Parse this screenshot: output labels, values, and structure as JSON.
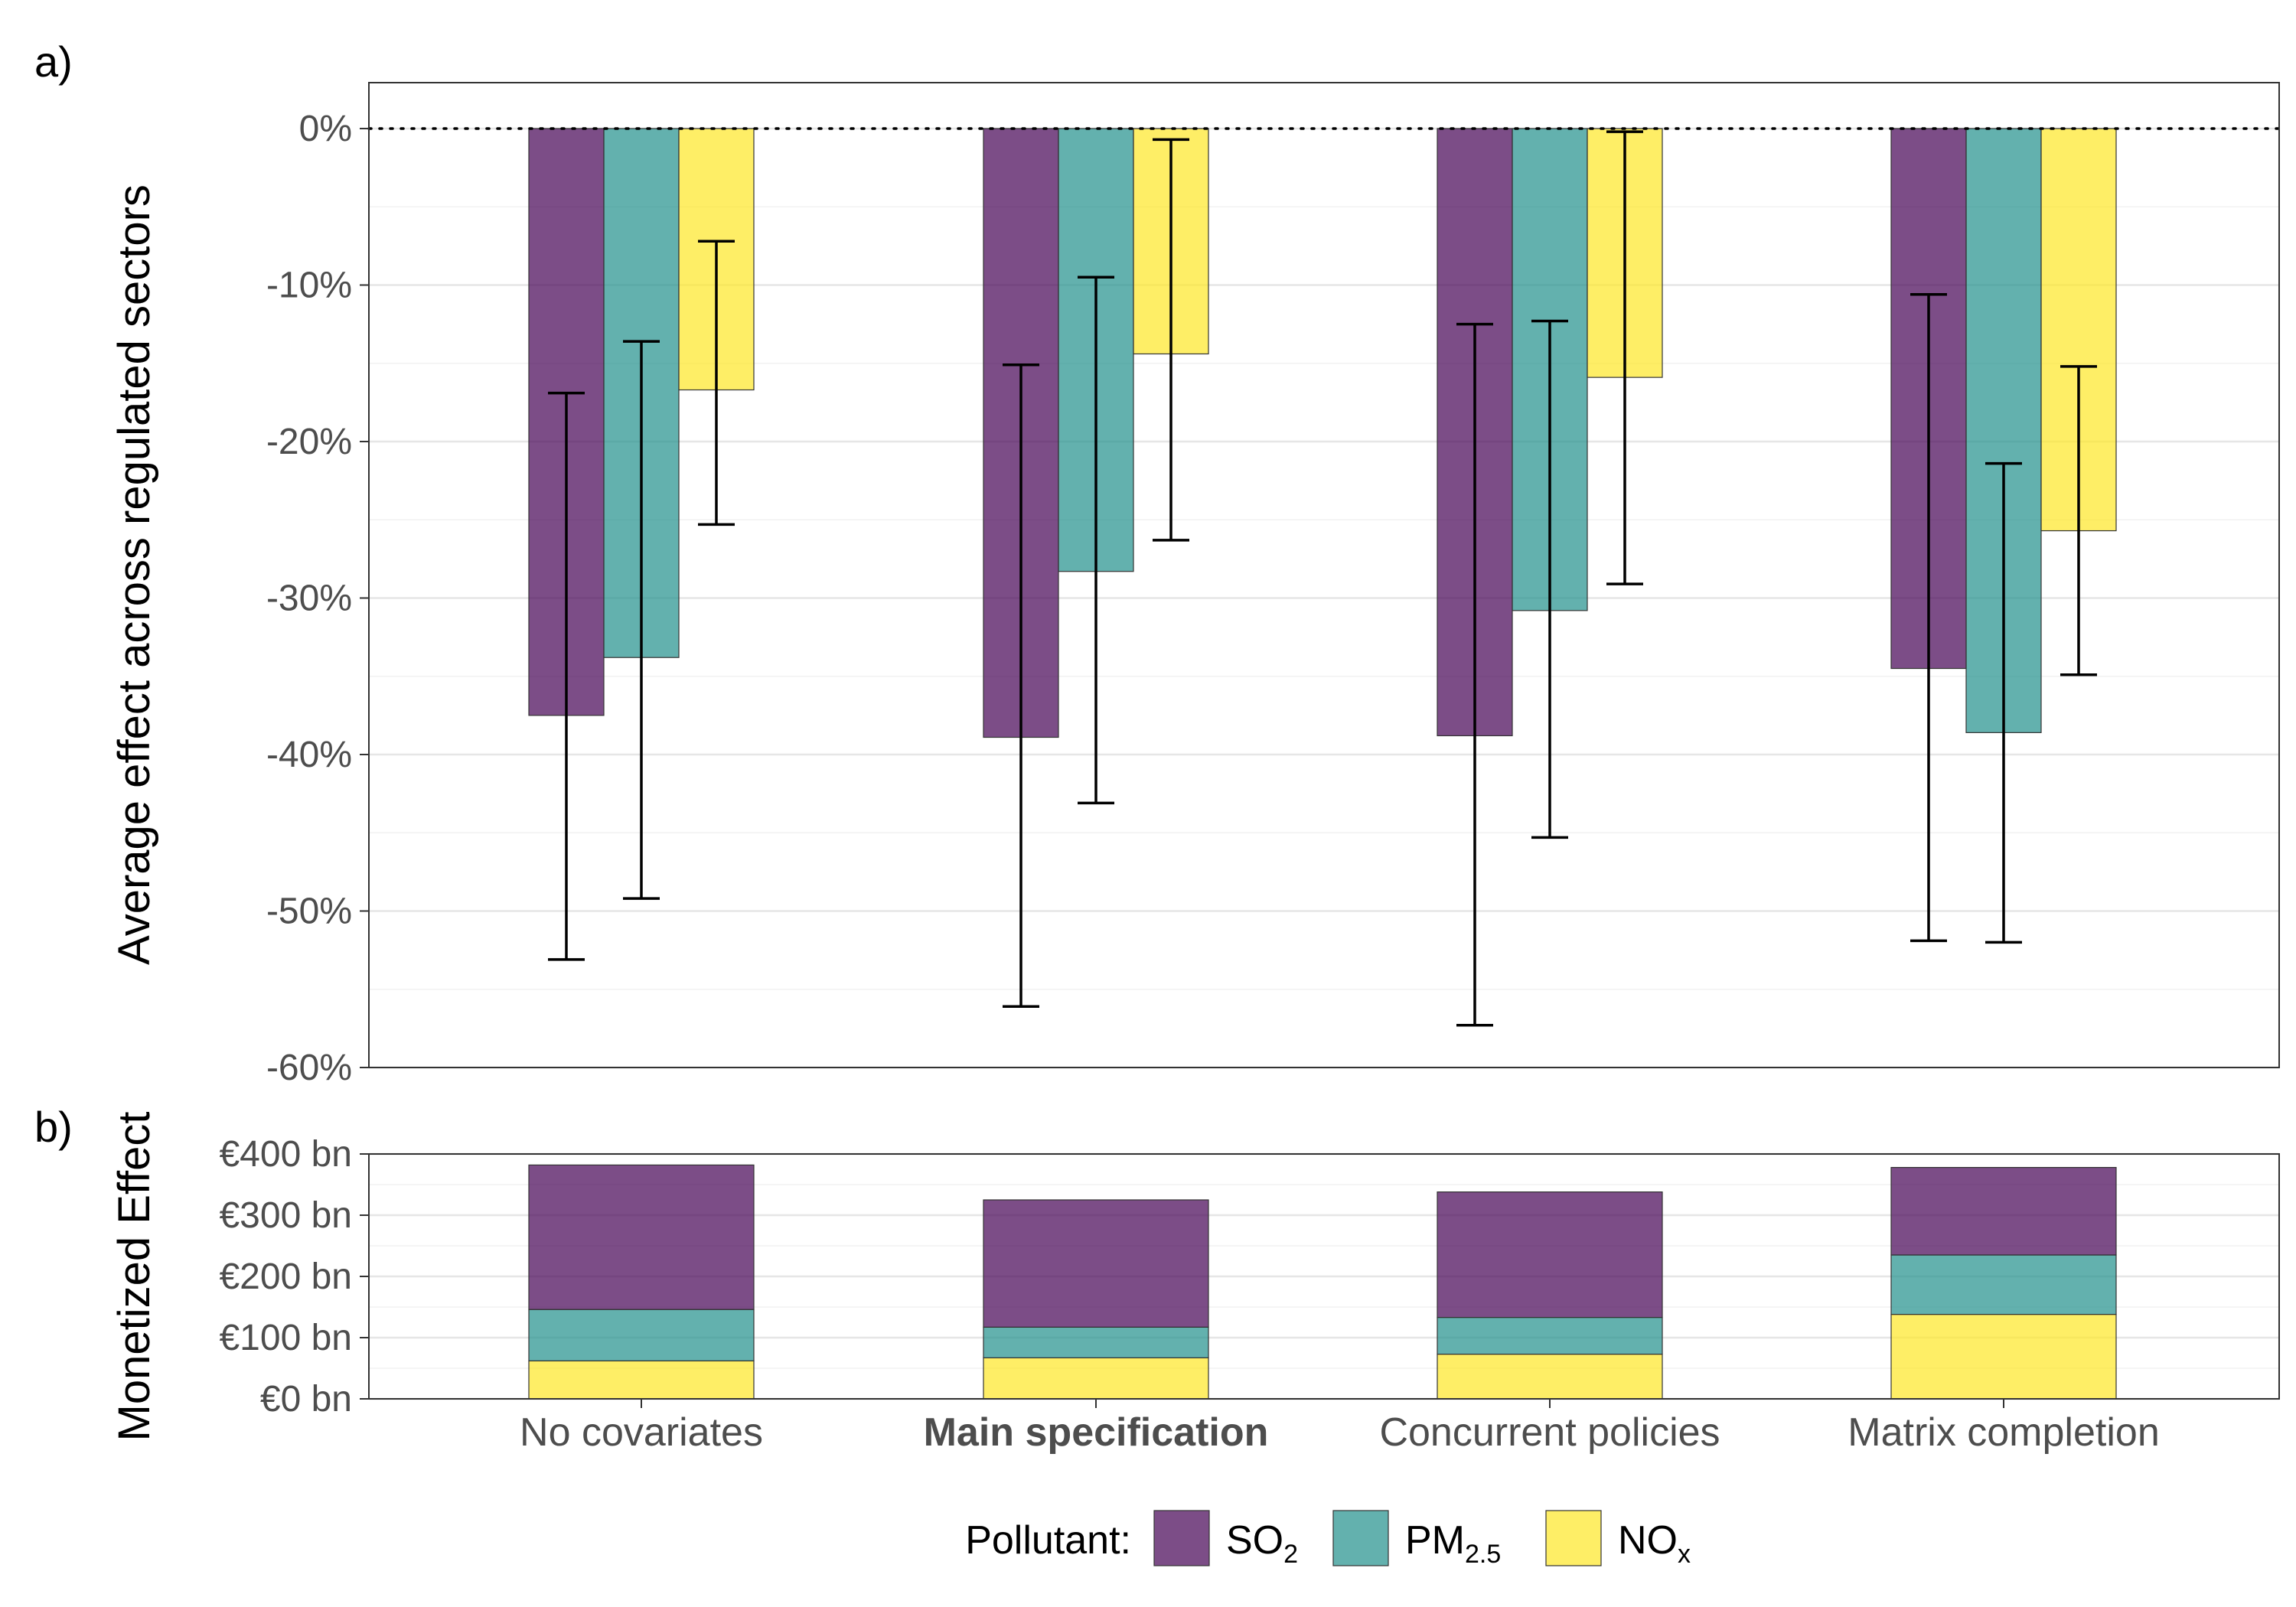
{
  "panels": {
    "a_label": "a)",
    "b_label": "b)"
  },
  "legend": {
    "title": "Pollutant:",
    "items": [
      {
        "main": "SO",
        "sub": "2",
        "color": "#440154"
      },
      {
        "main": "PM",
        "sub": "2.5",
        "color": "#21908C"
      },
      {
        "main": "NO",
        "sub": "x",
        "color": "#FDE725"
      }
    ]
  },
  "chart_data": [
    {
      "type": "bar",
      "panel": "a",
      "ylabel": "Average effect across regulated sectors",
      "xlabel": "",
      "categories": [
        "No covariates",
        "Main specification",
        "Concurrent policies",
        "Matrix completion"
      ],
      "emphasized_category": "Main specification",
      "ylim": [
        -60,
        0
      ],
      "yticks": [
        0,
        -10,
        -20,
        -30,
        -40,
        -50,
        -60
      ],
      "ytick_labels": [
        "0%",
        "-10%",
        "-20%",
        "-30%",
        "-40%",
        "-50%",
        "-60%"
      ],
      "reference_line": {
        "y": 0,
        "style": "dotted"
      },
      "grid": true,
      "series": [
        {
          "name": "SO2",
          "color": "#440154",
          "values": [
            -37.5,
            -38.9,
            -38.8,
            -34.5
          ],
          "ci_low": [
            -53.1,
            -56.1,
            -57.3,
            -51.9
          ],
          "ci_high": [
            -16.9,
            -15.1,
            -12.5,
            -10.6
          ]
        },
        {
          "name": "PM2.5",
          "color": "#21908C",
          "values": [
            -33.8,
            -28.3,
            -30.8,
            -38.6
          ],
          "ci_low": [
            -49.2,
            -43.1,
            -45.3,
            -52.0
          ],
          "ci_high": [
            -13.6,
            -9.5,
            -12.3,
            -21.4
          ]
        },
        {
          "name": "NOx",
          "color": "#FDE725",
          "values": [
            -16.7,
            -14.4,
            -15.9,
            -25.7
          ],
          "ci_low": [
            -25.3,
            -26.3,
            -29.1,
            -34.9
          ],
          "ci_high": [
            -7.2,
            -0.7,
            -0.2,
            -15.2
          ]
        }
      ]
    },
    {
      "type": "bar",
      "stacked": true,
      "panel": "b",
      "ylabel": "Monetized Effect",
      "xlabel": "",
      "categories": [
        "No covariates",
        "Main specification",
        "Concurrent policies",
        "Matrix completion"
      ],
      "ylim": [
        0,
        400
      ],
      "yticks": [
        0,
        100,
        200,
        300,
        400
      ],
      "ytick_labels": [
        "€0 bn",
        "€100 bn",
        "€200 bn",
        "€300 bn",
        "€400 bn"
      ],
      "grid": true,
      "series": [
        {
          "name": "NOx",
          "color": "#FDE725",
          "values": [
            62,
            67,
            73,
            138
          ]
        },
        {
          "name": "PM2.5",
          "color": "#21908C",
          "values": [
            84,
            50,
            60,
            97
          ]
        },
        {
          "name": "SO2",
          "color": "#440154",
          "values": [
            236,
            208,
            205,
            143
          ]
        }
      ]
    }
  ]
}
